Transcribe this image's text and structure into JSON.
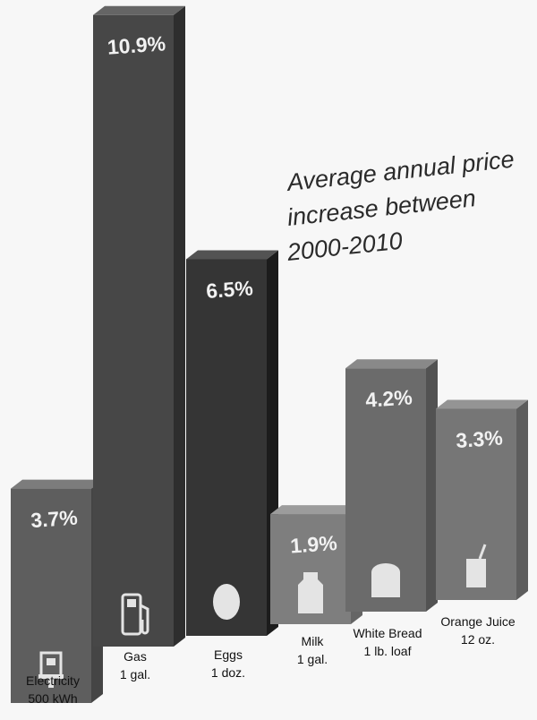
{
  "chart_data": {
    "type": "bar",
    "title_lines": [
      "Average annual price",
      "increase between",
      "2000-2010"
    ],
    "categories": [
      {
        "name": "Electricity",
        "unit": "500 kWh",
        "icon": "electric-meter-icon",
        "shade": "#5e5e5e"
      },
      {
        "name": "Gas",
        "unit": "1 gal.",
        "icon": "gas-pump-icon",
        "shade": "#474747"
      },
      {
        "name": "Eggs",
        "unit": "1 doz.",
        "icon": "egg-icon",
        "shade": "#353535"
      },
      {
        "name": "Milk",
        "unit": "1 gal.",
        "icon": "milk-jug-icon",
        "shade": "#7e7e7e"
      },
      {
        "name": "White Bread",
        "unit": "1 lb. loaf",
        "icon": "bread-loaf-icon",
        "shade": "#6b6b6b"
      },
      {
        "name": "Orange Juice",
        "unit": "12 oz.",
        "icon": "juice-carton-icon",
        "shade": "#767676"
      }
    ],
    "values": [
      3.7,
      10.9,
      6.5,
      1.9,
      4.2,
      3.3
    ],
    "value_labels": [
      "3.7%",
      "10.9%",
      "6.5%",
      "1.9%",
      "4.2%",
      "3.3%"
    ],
    "xlabel": "",
    "ylabel": "",
    "ylim": [
      0,
      11
    ],
    "grid": false,
    "legend": "none"
  }
}
